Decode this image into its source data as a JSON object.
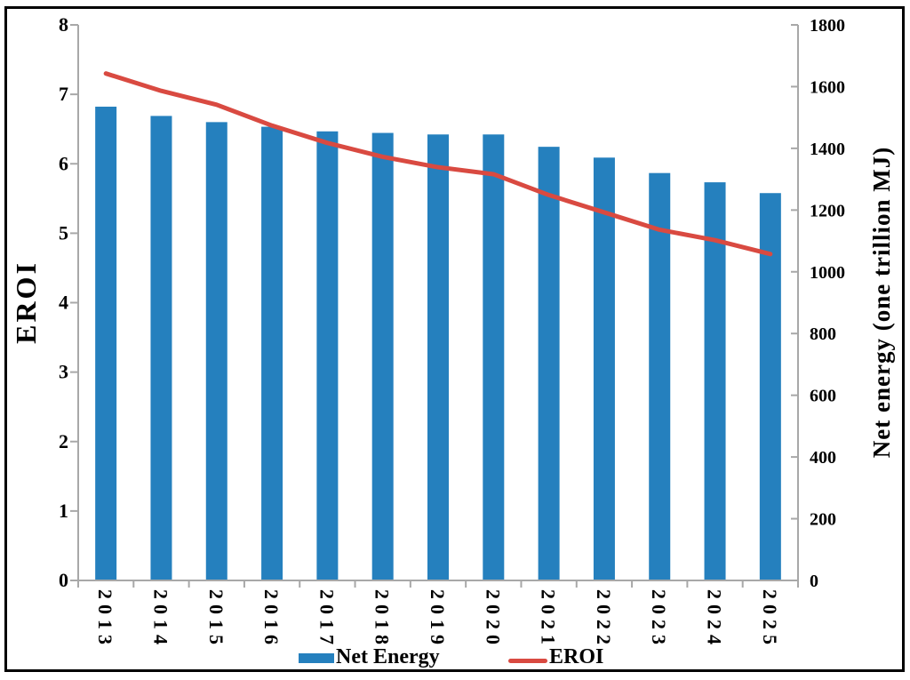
{
  "chart_data": {
    "type": "combo",
    "title": "",
    "categories": [
      "2013",
      "2014",
      "2015",
      "2016",
      "2017",
      "2018",
      "2019",
      "2020",
      "2021",
      "2022",
      "2023",
      "2024",
      "2025"
    ],
    "series": [
      {
        "name": "Net Energy",
        "type": "bar",
        "axis": "right",
        "color": "#2580BE",
        "values": [
          1535,
          1505,
          1485,
          1470,
          1455,
          1450,
          1445,
          1445,
          1405,
          1370,
          1320,
          1290,
          1255
        ]
      },
      {
        "name": "EROI",
        "type": "line",
        "axis": "left",
        "color": "#D94A41",
        "values": [
          7.3,
          7.05,
          6.85,
          6.55,
          6.3,
          6.1,
          5.95,
          5.85,
          5.55,
          5.3,
          5.05,
          4.9,
          4.7
        ]
      }
    ],
    "left_axis": {
      "label": "EROI",
      "min": 0,
      "max": 8,
      "step": 1,
      "tick_labels": [
        "0",
        "1",
        "2",
        "3",
        "4",
        "5",
        "6",
        "7",
        "8"
      ]
    },
    "right_axis": {
      "label": "Net energy (one trillion  MJ)",
      "min": 0,
      "max": 1800,
      "step": 200,
      "tick_labels": [
        "0",
        "200",
        "400",
        "600",
        "800",
        "1000",
        "1200",
        "1400",
        "1600",
        "1800"
      ]
    },
    "grid": false,
    "legend_position": "bottom",
    "axis_color": "#A8A8A8"
  }
}
